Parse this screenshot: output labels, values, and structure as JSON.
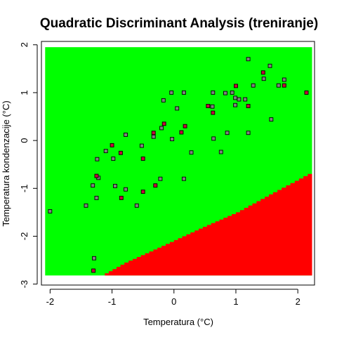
{
  "chart_data": {
    "type": "scatter",
    "title": "Quadratic Discriminant Analysis (treniranje)",
    "xlabel": "Temperatura (°C)",
    "ylabel": "Temperatura kondenzacije (°C)",
    "xlim": [
      -2.14,
      2.27
    ],
    "ylim": [
      -3.02,
      2.07
    ],
    "grid_extent": {
      "x": [
        -2.08,
        2.23
      ],
      "y": [
        -2.82,
        1.95
      ]
    },
    "x_ticks": [
      -2,
      -1,
      0,
      1,
      2
    ],
    "y_ticks": [
      -3,
      -2,
      -1,
      0,
      1,
      2
    ],
    "x_tick_labels": [
      "-2",
      "-1",
      "0",
      "1",
      "2"
    ],
    "y_tick_labels": [
      "-3",
      "-2",
      "-1",
      "0",
      "1",
      "2"
    ],
    "regions": [
      {
        "color": "#00ff00"
      },
      {
        "color": "#ff0000"
      }
    ],
    "boundary": {
      "points": [
        [
          -1.18,
          -2.82
        ],
        [
          -0.8,
          -2.55
        ],
        [
          -0.2,
          -2.2
        ],
        [
          0.4,
          -1.84
        ],
        [
          1.0,
          -1.5
        ],
        [
          1.6,
          -1.08
        ],
        [
          2.23,
          -0.65
        ]
      ]
    },
    "series": [
      {
        "color": "#808080",
        "points": [
          [
            -2.0,
            -1.48
          ],
          [
            -1.42,
            -1.36
          ],
          [
            -1.31,
            -0.94
          ],
          [
            -1.25,
            -1.2
          ],
          [
            -1.22,
            -0.78
          ],
          [
            -1.24,
            -0.39
          ],
          [
            -1.1,
            -0.22
          ],
          [
            -0.95,
            -0.95
          ],
          [
            -0.98,
            -0.38
          ],
          [
            -0.78,
            0.12
          ],
          [
            -0.78,
            -1.02
          ],
          [
            -0.6,
            -1.36
          ],
          [
            -0.52,
            -0.11
          ],
          [
            -0.33,
            0.08
          ],
          [
            -0.2,
            0.26
          ],
          [
            -0.17,
            0.84
          ],
          [
            -0.03,
            0.03
          ],
          [
            0.05,
            0.67
          ],
          [
            0.16,
            1.0
          ],
          [
            0.28,
            -0.25
          ],
          [
            0.16,
            -0.8
          ],
          [
            0.62,
            0.71
          ],
          [
            0.63,
            1.0
          ],
          [
            0.64,
            0.04
          ],
          [
            0.76,
            -0.24
          ],
          [
            0.83,
            0.99
          ],
          [
            0.86,
            0.16
          ],
          [
            0.99,
            0.89
          ],
          [
            0.99,
            0.74
          ],
          [
            1.05,
            0.86
          ],
          [
            1.15,
            0.86
          ],
          [
            1.2,
            0.16
          ],
          [
            1.2,
            1.7
          ],
          [
            1.28,
            1.15
          ],
          [
            1.45,
            1.29
          ],
          [
            1.55,
            1.56
          ],
          [
            1.57,
            0.44
          ],
          [
            1.78,
            1.27
          ],
          [
            1.69,
            1.15
          ],
          [
            -1.29,
            -2.46
          ],
          [
            -0.22,
            -0.8
          ],
          [
            -0.04,
            1.0
          ],
          [
            0.94,
            1.0
          ]
        ]
      },
      {
        "color": "#c8003c",
        "points": [
          [
            -1.0,
            -0.1
          ],
          [
            -0.86,
            -0.26
          ],
          [
            -1.25,
            -0.74
          ],
          [
            -0.85,
            -1.2
          ],
          [
            -0.5,
            -1.07
          ],
          [
            -0.5,
            -0.38
          ],
          [
            -0.3,
            -0.94
          ],
          [
            -0.33,
            0.16
          ],
          [
            -0.16,
            0.35
          ],
          [
            0.12,
            0.17
          ],
          [
            0.18,
            0.3
          ],
          [
            0.55,
            0.72
          ],
          [
            0.63,
            0.58
          ],
          [
            1.0,
            1.14
          ],
          [
            1.2,
            0.72
          ],
          [
            1.44,
            1.42
          ],
          [
            1.78,
            1.15
          ],
          [
            2.14,
            1.0
          ],
          [
            -1.3,
            -2.72
          ]
        ]
      }
    ]
  }
}
